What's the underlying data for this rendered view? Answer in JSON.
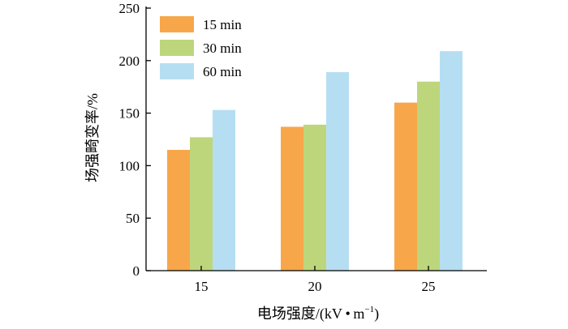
{
  "chart_data": {
    "type": "bar",
    "title": "",
    "xlabel": "电场强度/(kV • m",
    "xlabel_superscript": "−1",
    "xlabel_close": ")",
    "ylabel": "场强畸变率/%",
    "categories": [
      "15",
      "20",
      "25"
    ],
    "series": [
      {
        "name": "15 min",
        "values": [
          115,
          137,
          160
        ],
        "color": "#f8a64a"
      },
      {
        "name": "30 min",
        "values": [
          127,
          139,
          180
        ],
        "color": "#bdd67c"
      },
      {
        "name": "60 min",
        "values": [
          153,
          189,
          209
        ],
        "color": "#b6def2"
      }
    ],
    "ylim": [
      0,
      250
    ],
    "yticks": [
      0,
      50,
      100,
      150,
      200,
      250
    ],
    "legend_position": "top-left",
    "grid": false
  }
}
